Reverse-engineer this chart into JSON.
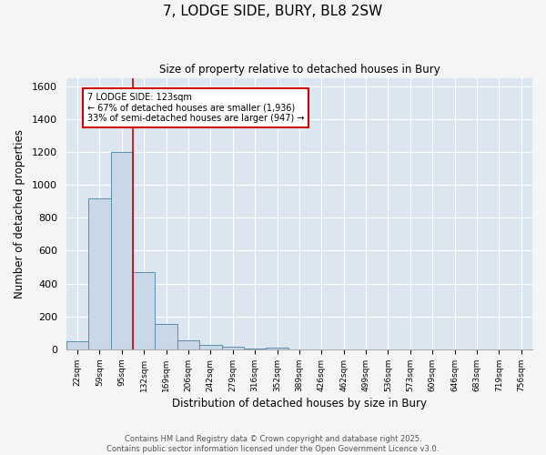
{
  "title_line1": "7, LODGE SIDE, BURY, BL8 2SW",
  "title_line2": "Size of property relative to detached houses in Bury",
  "xlabel": "Distribution of detached houses by size in Bury",
  "ylabel": "Number of detached properties",
  "bar_labels": [
    "22sqm",
    "59sqm",
    "95sqm",
    "132sqm",
    "169sqm",
    "206sqm",
    "242sqm",
    "279sqm",
    "316sqm",
    "352sqm",
    "389sqm",
    "426sqm",
    "462sqm",
    "499sqm",
    "536sqm",
    "573sqm",
    "609sqm",
    "646sqm",
    "683sqm",
    "719sqm",
    "756sqm"
  ],
  "bar_values": [
    50,
    920,
    1200,
    470,
    155,
    55,
    30,
    15,
    5,
    10,
    0,
    0,
    0,
    0,
    0,
    0,
    0,
    0,
    0,
    0,
    0
  ],
  "bar_color": "#c8d8e8",
  "bar_edge_color": "#5b8db0",
  "vline_color": "#cc0000",
  "annotation_text": "7 LODGE SIDE: 123sqm\n← 67% of detached houses are smaller (1,936)\n33% of semi-detached houses are larger (947) →",
  "annotation_box_color": "#ffffff",
  "annotation_box_edge": "#cc0000",
  "ylim": [
    0,
    1650
  ],
  "yticks": [
    0,
    200,
    400,
    600,
    800,
    1000,
    1200,
    1400,
    1600
  ],
  "fig_bg_color": "#f5f5f5",
  "plot_bg_color": "#dce6f0",
  "grid_color": "#ffffff",
  "footer_line1": "Contains HM Land Registry data © Crown copyright and database right 2025.",
  "footer_line2": "Contains public sector information licensed under the Open Government Licence v3.0."
}
